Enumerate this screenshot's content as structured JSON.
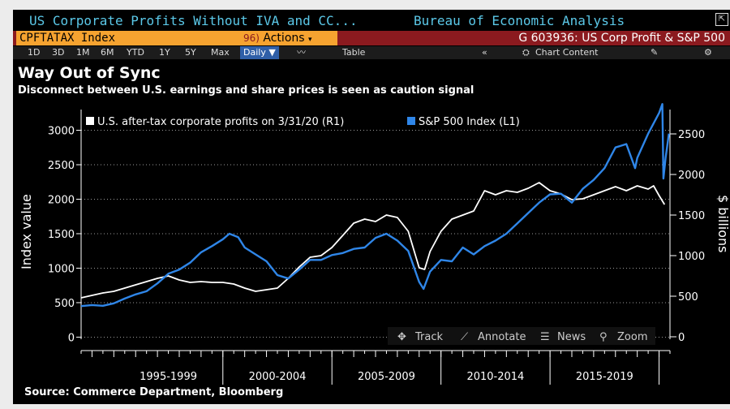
{
  "window": {
    "title_left": "US Corporate Profits Without IVA and CC...",
    "title_right": "Bureau of Economic Analysis",
    "ticker": "CPFTATAX Index",
    "actions_num": "96)",
    "actions_label": "Actions",
    "chart_id": "G 603936: US Corp Profit & S&P 500"
  },
  "toolbar": {
    "ranges": [
      "1D",
      "3D",
      "1M",
      "6M",
      "YTD",
      "1Y",
      "5Y",
      "Max"
    ],
    "period": "Daily",
    "table_label": "Table",
    "chart_content_label": "Chart Content"
  },
  "header": {
    "title": "Way Out of Sync",
    "subtitle": "Disconnect between U.S. earnings and share prices is seen as caution signal"
  },
  "footer": {
    "source": "Source: Commerce Department, Bloomberg"
  },
  "controls": {
    "track": "Track",
    "annotate": "Annotate",
    "news": "News",
    "zoom": "Zoom"
  },
  "colors": {
    "profits": "#ffffff",
    "sp500": "#2f86e8",
    "background": "#000000"
  },
  "chart_data": {
    "type": "line",
    "left_axis": {
      "label": "Index value",
      "ticks": [
        0,
        500,
        1000,
        1500,
        2000,
        2500,
        3000
      ],
      "range": [
        -30,
        3300
      ]
    },
    "right_axis": {
      "label": "$ billions",
      "ticks": [
        0,
        500,
        1000,
        1500,
        2000,
        2500
      ],
      "range": [
        -30,
        2800
      ]
    },
    "x_range": [
      1993.5,
      2020.5
    ],
    "categories": [
      {
        "label": "1995-1999",
        "from": 1995,
        "to": 2000
      },
      {
        "label": "2000-2004",
        "from": 2000,
        "to": 2005
      },
      {
        "label": "2005-2009",
        "from": 2005,
        "to": 2010
      },
      {
        "label": "2010-2014",
        "from": 2010,
        "to": 2015
      },
      {
        "label": "2015-2019",
        "from": 2015,
        "to": 2020
      }
    ],
    "grid": true,
    "series": [
      {
        "name": "U.S. after-tax corporate profits on 3/31/20 (R1)",
        "axis": "right",
        "points": [
          [
            1993.5,
            480
          ],
          [
            1994,
            510
          ],
          [
            1994.5,
            540
          ],
          [
            1995,
            560
          ],
          [
            1995.5,
            600
          ],
          [
            1996,
            640
          ],
          [
            1996.5,
            680
          ],
          [
            1997,
            720
          ],
          [
            1997.5,
            750
          ],
          [
            1998,
            700
          ],
          [
            1998.5,
            670
          ],
          [
            1999,
            680
          ],
          [
            1999.5,
            670
          ],
          [
            2000,
            670
          ],
          [
            2000.5,
            650
          ],
          [
            2001,
            600
          ],
          [
            2001.5,
            560
          ],
          [
            2002,
            580
          ],
          [
            2002.5,
            600
          ],
          [
            2003,
            720
          ],
          [
            2003.5,
            860
          ],
          [
            2004,
            980
          ],
          [
            2004.5,
            1000
          ],
          [
            2005,
            1100
          ],
          [
            2005.5,
            1250
          ],
          [
            2006,
            1400
          ],
          [
            2006.5,
            1450
          ],
          [
            2007,
            1420
          ],
          [
            2007.5,
            1500
          ],
          [
            2008,
            1470
          ],
          [
            2008.5,
            1300
          ],
          [
            2009,
            850
          ],
          [
            2009.25,
            830
          ],
          [
            2009.5,
            1050
          ],
          [
            2010,
            1300
          ],
          [
            2010.5,
            1450
          ],
          [
            2011,
            1500
          ],
          [
            2011.5,
            1550
          ],
          [
            2012,
            1800
          ],
          [
            2012.5,
            1750
          ],
          [
            2013,
            1800
          ],
          [
            2013.5,
            1780
          ],
          [
            2014,
            1830
          ],
          [
            2014.5,
            1900
          ],
          [
            2015,
            1800
          ],
          [
            2015.5,
            1760
          ],
          [
            2016,
            1690
          ],
          [
            2016.5,
            1700
          ],
          [
            2017,
            1750
          ],
          [
            2017.5,
            1800
          ],
          [
            2018,
            1850
          ],
          [
            2018.5,
            1800
          ],
          [
            2019,
            1860
          ],
          [
            2019.5,
            1820
          ],
          [
            2019.75,
            1860
          ],
          [
            2020,
            1740
          ],
          [
            2020.25,
            1630
          ]
        ]
      },
      {
        "name": "S&P 500 Index (L1)",
        "axis": "left",
        "points": [
          [
            1993.5,
            450
          ],
          [
            1994,
            465
          ],
          [
            1994.5,
            455
          ],
          [
            1995,
            490
          ],
          [
            1995.5,
            560
          ],
          [
            1996,
            620
          ],
          [
            1996.5,
            665
          ],
          [
            1997,
            780
          ],
          [
            1997.5,
            920
          ],
          [
            1998,
            980
          ],
          [
            1998.5,
            1080
          ],
          [
            1999,
            1230
          ],
          [
            1999.5,
            1320
          ],
          [
            2000,
            1420
          ],
          [
            2000.3,
            1500
          ],
          [
            2000.7,
            1450
          ],
          [
            2001,
            1300
          ],
          [
            2001.5,
            1200
          ],
          [
            2002,
            1100
          ],
          [
            2002.5,
            900
          ],
          [
            2003,
            850
          ],
          [
            2003.5,
            980
          ],
          [
            2004,
            1120
          ],
          [
            2004.5,
            1120
          ],
          [
            2005,
            1190
          ],
          [
            2005.5,
            1220
          ],
          [
            2006,
            1280
          ],
          [
            2006.5,
            1300
          ],
          [
            2007,
            1440
          ],
          [
            2007.5,
            1500
          ],
          [
            2008,
            1400
          ],
          [
            2008.5,
            1250
          ],
          [
            2009,
            800
          ],
          [
            2009.2,
            700
          ],
          [
            2009.5,
            950
          ],
          [
            2010,
            1120
          ],
          [
            2010.5,
            1100
          ],
          [
            2011,
            1300
          ],
          [
            2011.5,
            1200
          ],
          [
            2012,
            1320
          ],
          [
            2012.5,
            1400
          ],
          [
            2013,
            1500
          ],
          [
            2013.5,
            1650
          ],
          [
            2014,
            1800
          ],
          [
            2014.5,
            1950
          ],
          [
            2015,
            2070
          ],
          [
            2015.5,
            2080
          ],
          [
            2016,
            1950
          ],
          [
            2016.5,
            2150
          ],
          [
            2017,
            2280
          ],
          [
            2017.5,
            2450
          ],
          [
            2018,
            2750
          ],
          [
            2018.5,
            2800
          ],
          [
            2018.9,
            2450
          ],
          [
            2019,
            2600
          ],
          [
            2019.5,
            2950
          ],
          [
            2020,
            3250
          ],
          [
            2020.15,
            3380
          ],
          [
            2020.2,
            2300
          ],
          [
            2020.3,
            2600
          ],
          [
            2020.45,
            2950
          ]
        ]
      }
    ]
  }
}
